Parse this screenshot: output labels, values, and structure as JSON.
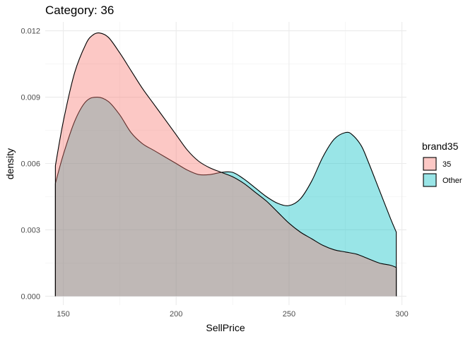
{
  "chart_data": {
    "type": "area",
    "title": "Category: 36",
    "xlabel": "SellPrice",
    "ylabel": "density",
    "xlim": [
      142,
      302
    ],
    "ylim": [
      -0.0004,
      0.0124
    ],
    "x_ticks": [
      150,
      200,
      250,
      300
    ],
    "x_tick_labels": [
      "150",
      "200",
      "250",
      "300"
    ],
    "y_ticks": [
      0,
      0.003,
      0.006,
      0.009,
      0.012
    ],
    "y_tick_labels": [
      "0.000",
      "0.003",
      "0.006",
      "0.009",
      "0.012"
    ],
    "grid": true,
    "legend": {
      "title": "brand35",
      "position": "right",
      "labels": [
        "35",
        "Other"
      ]
    },
    "series": [
      {
        "name": "35",
        "color": "#F8766D",
        "x": [
          146.5,
          150,
          155,
          160,
          163,
          166,
          170,
          175,
          180,
          185,
          190,
          195,
          200,
          205,
          210,
          215,
          220,
          225,
          230,
          235,
          240,
          245,
          250,
          255,
          260,
          265,
          270,
          275,
          280,
          285,
          290,
          295,
          297.5
        ],
        "y": [
          0.0059,
          0.0079,
          0.0101,
          0.0114,
          0.0118,
          0.0119,
          0.0117,
          0.011,
          0.0102,
          0.0094,
          0.0087,
          0.008,
          0.0073,
          0.0066,
          0.0061,
          0.0058,
          0.0056,
          0.0054,
          0.0051,
          0.0047,
          0.0043,
          0.0038,
          0.0033,
          0.0029,
          0.0026,
          0.0023,
          0.0021,
          0.002,
          0.0019,
          0.0017,
          0.0015,
          0.0014,
          0.0013
        ]
      },
      {
        "name": "Other",
        "color": "#00BFC4",
        "x": [
          146.5,
          150,
          155,
          160,
          165,
          170,
          175,
          180,
          185,
          190,
          195,
          200,
          205,
          210,
          215,
          220,
          225,
          230,
          235,
          240,
          245,
          250,
          255,
          260,
          265,
          270,
          275,
          278,
          282,
          285,
          290,
          295,
          297.5
        ],
        "y": [
          0.0051,
          0.0064,
          0.0079,
          0.0088,
          0.009,
          0.0088,
          0.0082,
          0.0074,
          0.0069,
          0.0066,
          0.0063,
          0.006,
          0.0057,
          0.0055,
          0.0055,
          0.0056,
          0.0056,
          0.0053,
          0.0049,
          0.0045,
          0.0042,
          0.0041,
          0.0044,
          0.0052,
          0.0063,
          0.0071,
          0.0074,
          0.0073,
          0.0068,
          0.0061,
          0.0048,
          0.0035,
          0.0029
        ]
      }
    ]
  }
}
